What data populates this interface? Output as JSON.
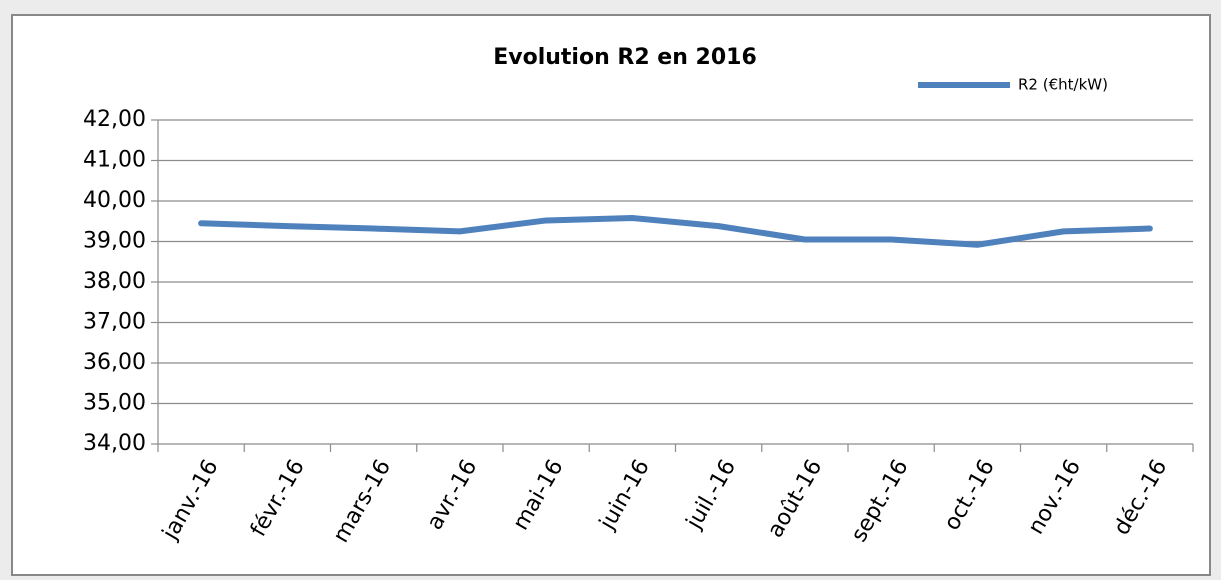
{
  "chart_data": {
    "type": "line",
    "title": "Evolution R2 en 2016",
    "categories": [
      "janv.-16",
      "févr.-16",
      "mars-16",
      "avr.-16",
      "mai-16",
      "juin-16",
      "juil.-16",
      "août-16",
      "sept.-16",
      "oct.-16",
      "nov.-16",
      "déc.-16"
    ],
    "series": [
      {
        "name": "R2 (€ht/kW)",
        "color": "#4f81bd",
        "values": [
          39.45,
          39.38,
          39.32,
          39.25,
          39.52,
          39.58,
          39.38,
          39.05,
          39.05,
          38.92,
          39.25,
          39.32
        ]
      }
    ],
    "ylim": [
      34,
      42
    ],
    "yticks": [
      {
        "value": 34,
        "label": "34,00"
      },
      {
        "value": 35,
        "label": "35,00"
      },
      {
        "value": 36,
        "label": "36,00"
      },
      {
        "value": 37,
        "label": "37,00"
      },
      {
        "value": 38,
        "label": "38,00"
      },
      {
        "value": 39,
        "label": "39,00"
      },
      {
        "value": 40,
        "label": "40,00"
      },
      {
        "value": 41,
        "label": "41,00"
      },
      {
        "value": 42,
        "label": "42,00"
      }
    ],
    "grid": true,
    "legend": "top-right"
  }
}
